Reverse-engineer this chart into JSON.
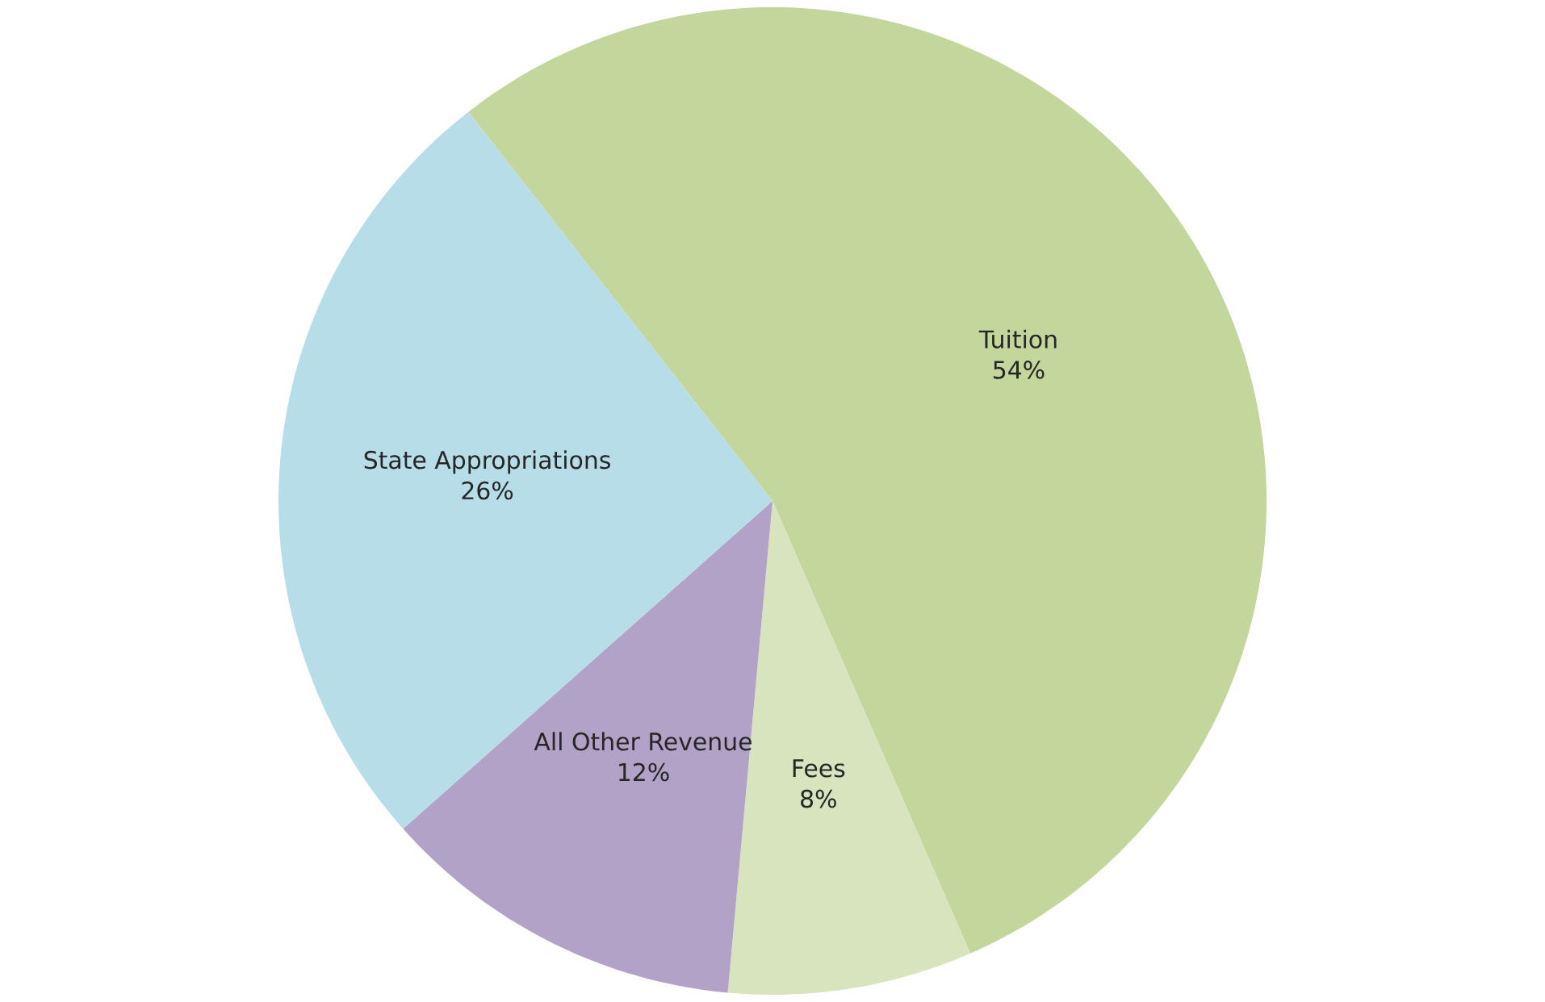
{
  "chart_data": {
    "type": "pie",
    "categories": [
      "Tuition",
      "Fees",
      "All Other Revenue",
      "State Appropriations"
    ],
    "values": [
      54,
      8,
      12,
      26
    ],
    "value_labels": [
      "54%",
      "8%",
      "12%",
      "26%"
    ],
    "colors": [
      "#c3d69b",
      "#d7e4bd",
      "#b3a2c7",
      "#b7dee8"
    ]
  }
}
